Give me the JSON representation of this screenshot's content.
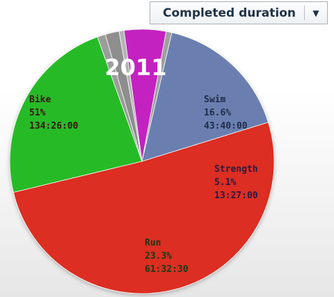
{
  "dropdown": {
    "label": "Completed duration",
    "arrow_icon": "triangle-down-icon"
  },
  "chart_data": {
    "type": "pie",
    "title": "2011",
    "slices": [
      {
        "name": "Swim",
        "percent_label": "16.6%",
        "duration": "43:40:00",
        "value": 16.6,
        "color": "#6b7fb0",
        "label_color": "#1e2c48"
      },
      {
        "name": "",
        "percent_label": "",
        "duration": "",
        "value": 0.7,
        "color": "#a0a0a0",
        "label_color": ""
      },
      {
        "name": "Strength",
        "percent_label": "5.1%",
        "duration": "13:27:00",
        "value": 5.1,
        "color": "#c424c0",
        "label_color": "#2a1a40"
      },
      {
        "name": "",
        "percent_label": "",
        "duration": "",
        "value": 0.6,
        "color": "#b4b4b4",
        "label_color": ""
      },
      {
        "name": "",
        "percent_label": "",
        "duration": "",
        "value": 1.7,
        "color": "#8e8e8e",
        "label_color": ""
      },
      {
        "name": "",
        "percent_label": "",
        "duration": "",
        "value": 1.0,
        "color": "#9c9c9c",
        "label_color": ""
      },
      {
        "name": "Run",
        "percent_label": "23.3%",
        "duration": "61:32:30",
        "value": 23.3,
        "color": "#27bb27",
        "label_color": "#173a17"
      },
      {
        "name": "Bike",
        "percent_label": "51%",
        "duration": "134:26:00",
        "value": 51.0,
        "color": "#dc2f22",
        "label_color": "#3a120e"
      }
    ]
  }
}
